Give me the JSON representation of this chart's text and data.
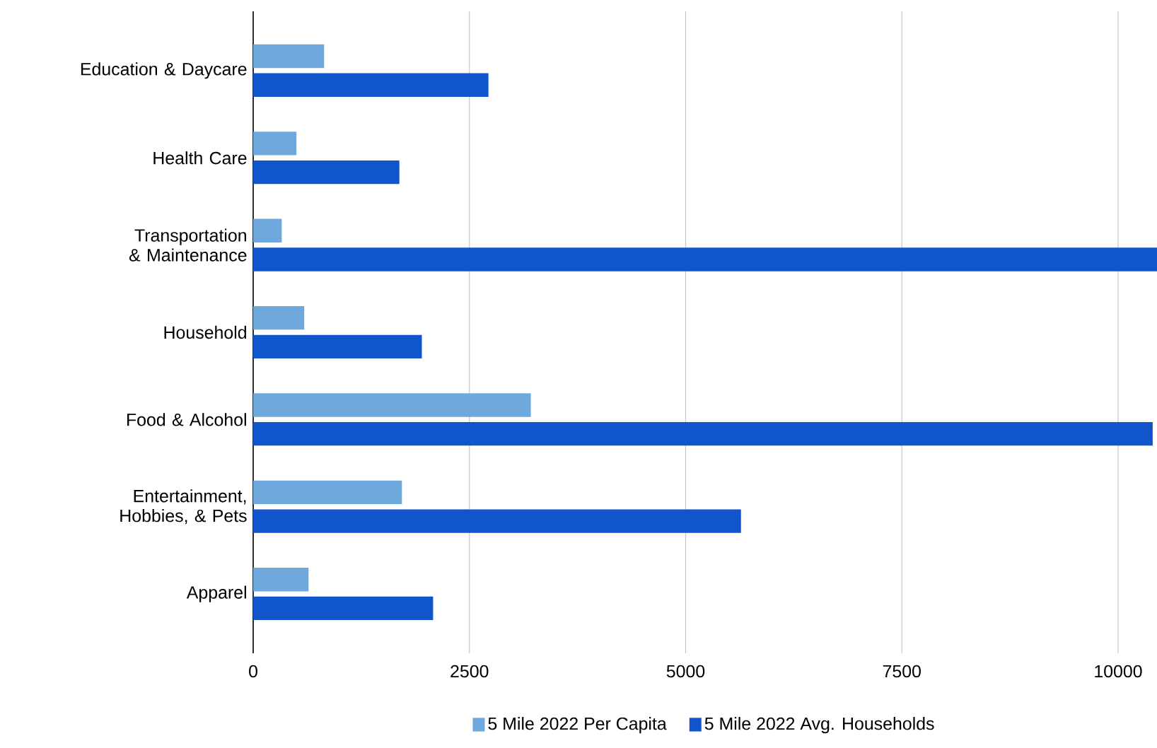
{
  "chart_data": {
    "type": "bar",
    "orientation": "horizontal",
    "categories": [
      "Education & Daycare",
      "Health Care",
      "Transportation & Maintenance",
      "Household",
      "Food & Alcohol",
      "Entertainment, Hobbies, & Pets",
      "Apparel"
    ],
    "series": [
      {
        "name": "5 Mile 2022 Per Capita",
        "color": "#6fa8dc",
        "values": [
          820,
          500,
          330,
          590,
          3210,
          1720,
          640
        ]
      },
      {
        "name": "5 Mile 2022 Avg. Households",
        "color": "#1155cc",
        "values": [
          2720,
          1690,
          10450,
          1950,
          10400,
          5640,
          2080
        ]
      }
    ],
    "xlim": [
      0,
      10450
    ],
    "xticks": [
      0,
      2500,
      5000,
      7500,
      10000
    ],
    "grid": "x",
    "legend": "bottom"
  }
}
